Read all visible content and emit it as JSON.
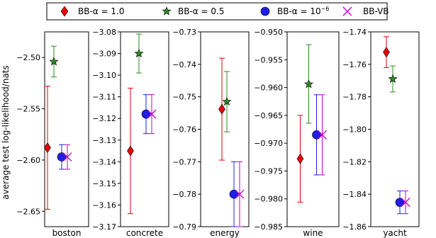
{
  "legend": {
    "items": [
      {
        "label": "BB-α = 1.0",
        "marker": "diamond",
        "color": "#e8000b"
      },
      {
        "label": "BB-α = 0.5",
        "marker": "star",
        "color": "#2e8b22"
      },
      {
        "label": "BB-α = 10",
        "label_sup": "−6",
        "marker": "circle",
        "color": "#1f1fe6"
      },
      {
        "label": "BB-VB",
        "marker": "x",
        "color": "#c000c8"
      }
    ]
  },
  "chart_data": [
    {
      "type": "errorbar",
      "xlabel": "boston",
      "ylabel": "average test log-likelihood/nats",
      "ylim": [
        -2.665,
        -2.475
      ],
      "yticks": [
        -2.65,
        -2.6,
        -2.55,
        -2.5
      ],
      "ytick_labels": [
        "−2.65",
        "−2.60",
        "−2.55",
        "−2.50"
      ],
      "series": [
        {
          "name": "BB-α = 1.0",
          "mean": -2.588,
          "lower": -2.648,
          "upper": -2.528
        },
        {
          "name": "BB-α = 0.5",
          "mean": -2.504,
          "lower": -2.519,
          "upper": -2.489
        },
        {
          "name": "BB-α = 10^-6",
          "mean": -2.597,
          "lower": -2.609,
          "upper": -2.585
        },
        {
          "name": "BB-VB",
          "mean": -2.597,
          "lower": -2.609,
          "upper": -2.585
        }
      ]
    },
    {
      "type": "errorbar",
      "xlabel": "concrete",
      "ylim": [
        -3.17,
        -3.08
      ],
      "yticks": [
        -3.17,
        -3.16,
        -3.15,
        -3.14,
        -3.13,
        -3.12,
        -3.11,
        -3.1,
        -3.09,
        -3.08
      ],
      "ytick_labels": [
        "−3.17",
        "−3.16",
        "−3.15",
        "−3.14",
        "−3.13",
        "−3.12",
        "−3.11",
        "−3.10",
        "−3.09",
        "−3.08"
      ],
      "series": [
        {
          "name": "BB-α = 1.0",
          "mean": -3.135,
          "lower": -3.164,
          "upper": -3.106
        },
        {
          "name": "BB-α = 0.5",
          "mean": -3.09,
          "lower": -3.099,
          "upper": -3.081
        },
        {
          "name": "BB-α = 10^-6",
          "mean": -3.118,
          "lower": -3.127,
          "upper": -3.109
        },
        {
          "name": "BB-VB",
          "mean": -3.118,
          "lower": -3.127,
          "upper": -3.109
        }
      ]
    },
    {
      "type": "errorbar",
      "xlabel": "energy",
      "ylim": [
        -0.79,
        -0.73
      ],
      "yticks": [
        -0.79,
        -0.78,
        -0.77,
        -0.76,
        -0.75,
        -0.74,
        -0.73
      ],
      "ytick_labels": [
        "−0.79",
        "−0.78",
        "−0.77",
        "−0.76",
        "−0.75",
        "−0.74",
        "−0.73"
      ],
      "series": [
        {
          "name": "BB-α = 1.0",
          "mean": -0.7538,
          "lower": -0.7695,
          "upper": -0.7381
        },
        {
          "name": "BB-α = 0.5",
          "mean": -0.7515,
          "lower": -0.7608,
          "upper": -0.7422
        },
        {
          "name": "BB-α = 10^-6",
          "mean": -0.78,
          "lower": -0.79,
          "upper": -0.77
        },
        {
          "name": "BB-VB",
          "mean": -0.78,
          "lower": -0.79,
          "upper": -0.77
        }
      ]
    },
    {
      "type": "errorbar",
      "xlabel": "wine",
      "ylim": [
        -0.985,
        -0.95
      ],
      "yticks": [
        -0.985,
        -0.98,
        -0.975,
        -0.97,
        -0.965,
        -0.96,
        -0.955,
        -0.95
      ],
      "ytick_labels": [
        "−0.985",
        "−0.980",
        "−0.975",
        "−0.970",
        "−0.965",
        "−0.960",
        "−0.955",
        "−0.950"
      ],
      "series": [
        {
          "name": "BB-α = 1.0",
          "mean": -0.9728,
          "lower": -0.9806,
          "upper": -0.965
        },
        {
          "name": "BB-α = 0.5",
          "mean": -0.9594,
          "lower": -0.9664,
          "upper": -0.9523
        },
        {
          "name": "BB-α = 10^-6",
          "mean": -0.9685,
          "lower": -0.9757,
          "upper": -0.9613
        },
        {
          "name": "BB-VB",
          "mean": -0.9685,
          "lower": -0.9757,
          "upper": -0.9613
        }
      ]
    },
    {
      "type": "errorbar",
      "xlabel": "yacht",
      "ylim": [
        -1.86,
        -1.74
      ],
      "yticks": [
        -1.86,
        -1.84,
        -1.82,
        -1.8,
        -1.78,
        -1.76,
        -1.74
      ],
      "ytick_labels": [
        "−1.86",
        "−1.84",
        "−1.82",
        "−1.80",
        "−1.78",
        "−1.76",
        "−1.74"
      ],
      "series": [
        {
          "name": "BB-α = 1.0",
          "mean": -1.7525,
          "lower": -1.762,
          "upper": -1.743
        },
        {
          "name": "BB-α = 0.5",
          "mean": -1.769,
          "lower": -1.777,
          "upper": -1.761
        },
        {
          "name": "BB-α = 10^-6",
          "mean": -1.845,
          "lower": -1.852,
          "upper": -1.838
        },
        {
          "name": "BB-VB",
          "mean": -1.845,
          "lower": -1.852,
          "upper": -1.838
        }
      ]
    }
  ]
}
